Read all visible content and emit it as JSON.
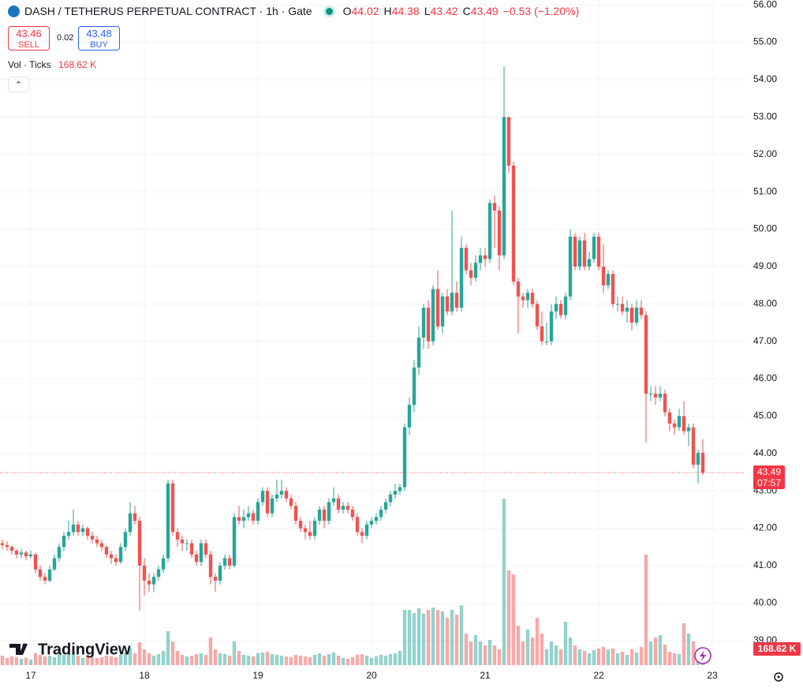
{
  "chart_data": {
    "type": "candlestick",
    "title": "DASH / TETHERUS PERPETUAL CONTRACT · 1h · Gate",
    "ohlc_labels": [
      "O",
      "H",
      "L",
      "C"
    ],
    "change": "−0.53 (−1.20%)",
    "sell": {
      "price": 43.46,
      "label": "SELL"
    },
    "spread": 0.02,
    "buy": {
      "price": 43.48,
      "label": "BUY"
    },
    "volume_title": "Vol · Ticks",
    "volume_label": "168.62 K",
    "countdown": "07:57",
    "brand": "TradingView",
    "up_color": "#26a69a",
    "down_color": "#ef5350",
    "grid": true,
    "ylim": [
      38.34,
      56.13
    ],
    "yticks": [
      {
        "value": 39,
        "label": "39.00"
      },
      {
        "value": 40,
        "label": "40.00"
      },
      {
        "value": 41,
        "label": "41.00"
      },
      {
        "value": 42,
        "label": "42.00"
      },
      {
        "value": 43,
        "label": "43.00"
      },
      {
        "value": 44,
        "label": "44.00"
      },
      {
        "value": 45,
        "label": "45.00"
      },
      {
        "value": 46,
        "label": "46.00"
      },
      {
        "value": 47,
        "label": "47.00"
      },
      {
        "value": 48,
        "label": "48.00"
      },
      {
        "value": 49,
        "label": "49.00"
      },
      {
        "value": 50,
        "label": "50.00"
      },
      {
        "value": 51,
        "label": "51.00"
      },
      {
        "value": 52,
        "label": "52.00"
      },
      {
        "value": 53,
        "label": "53.00"
      },
      {
        "value": 54,
        "label": "54.00"
      },
      {
        "value": 55,
        "label": "55.00"
      },
      {
        "value": 56,
        "label": "56.00"
      }
    ],
    "xticks": [
      "17",
      "18",
      "19",
      "20",
      "21",
      "22",
      "23"
    ],
    "candles": [
      [
        41.6,
        41.7,
        41.45,
        41.55,
        120
      ],
      [
        41.55,
        41.65,
        41.4,
        41.5,
        90
      ],
      [
        41.5,
        41.55,
        41.3,
        41.4,
        110
      ],
      [
        41.4,
        41.45,
        41.2,
        41.3,
        100
      ],
      [
        41.3,
        41.45,
        41.2,
        41.35,
        80
      ],
      [
        41.35,
        41.4,
        41.15,
        41.25,
        95
      ],
      [
        41.25,
        41.4,
        41.2,
        41.3,
        70
      ],
      [
        41.3,
        41.35,
        40.8,
        40.9,
        150
      ],
      [
        40.9,
        41.0,
        40.6,
        40.7,
        130
      ],
      [
        40.7,
        40.8,
        40.5,
        40.6,
        110
      ],
      [
        40.6,
        41.0,
        40.55,
        40.9,
        120
      ],
      [
        40.9,
        41.3,
        40.85,
        41.2,
        100
      ],
      [
        41.2,
        41.6,
        41.1,
        41.5,
        140
      ],
      [
        41.5,
        41.9,
        41.4,
        41.8,
        130
      ],
      [
        41.8,
        42.2,
        41.7,
        41.9,
        150
      ],
      [
        41.9,
        42.5,
        41.8,
        42.1,
        160
      ],
      [
        42.1,
        42.2,
        41.8,
        41.9,
        120
      ],
      [
        41.9,
        42.1,
        41.8,
        42.0,
        90
      ],
      [
        42.0,
        42.05,
        41.7,
        41.8,
        110
      ],
      [
        41.8,
        41.9,
        41.6,
        41.7,
        100
      ],
      [
        41.7,
        41.8,
        41.5,
        41.6,
        90
      ],
      [
        41.6,
        41.7,
        41.4,
        41.5,
        100
      ],
      [
        41.5,
        41.55,
        41.2,
        41.3,
        120
      ],
      [
        41.3,
        41.4,
        41.05,
        41.2,
        110
      ],
      [
        41.2,
        41.3,
        41.0,
        41.1,
        100
      ],
      [
        41.1,
        41.6,
        41.05,
        41.5,
        130
      ],
      [
        41.5,
        42.0,
        41.4,
        41.9,
        160
      ],
      [
        41.9,
        42.7,
        41.8,
        42.4,
        220
      ],
      [
        42.4,
        42.6,
        42.1,
        42.2,
        150
      ],
      [
        42.2,
        42.3,
        39.8,
        41.0,
        290
      ],
      [
        41.0,
        41.2,
        40.2,
        40.6,
        200
      ],
      [
        40.6,
        40.8,
        40.3,
        40.5,
        150
      ],
      [
        40.5,
        40.8,
        40.3,
        40.7,
        120
      ],
      [
        40.7,
        41.0,
        40.6,
        40.9,
        140
      ],
      [
        40.9,
        41.3,
        40.8,
        41.2,
        180
      ],
      [
        41.2,
        43.3,
        41.1,
        43.2,
        430
      ],
      [
        43.2,
        43.3,
        41.8,
        41.9,
        300
      ],
      [
        41.9,
        42.0,
        41.5,
        41.7,
        180
      ],
      [
        41.7,
        41.8,
        41.4,
        41.6,
        130
      ],
      [
        41.6,
        41.7,
        41.4,
        41.6,
        110
      ],
      [
        41.6,
        41.7,
        41.2,
        41.3,
        120
      ],
      [
        41.3,
        41.4,
        41.0,
        41.1,
        140
      ],
      [
        41.1,
        41.7,
        41.0,
        41.6,
        150
      ],
      [
        41.6,
        41.7,
        41.2,
        41.3,
        130
      ],
      [
        41.3,
        41.4,
        40.5,
        40.7,
        350
      ],
      [
        40.7,
        40.8,
        40.3,
        40.6,
        200
      ],
      [
        40.6,
        41.1,
        40.5,
        41.0,
        150
      ],
      [
        41.0,
        41.3,
        40.9,
        41.2,
        140
      ],
      [
        41.2,
        41.3,
        40.9,
        41.0,
        120
      ],
      [
        41.0,
        42.4,
        40.95,
        42.3,
        300
      ],
      [
        42.3,
        42.6,
        42.1,
        42.2,
        180
      ],
      [
        42.2,
        42.5,
        42.0,
        42.3,
        130
      ],
      [
        42.3,
        42.6,
        42.2,
        42.4,
        120
      ],
      [
        42.4,
        42.5,
        42.1,
        42.2,
        110
      ],
      [
        42.2,
        42.8,
        42.1,
        42.7,
        150
      ],
      [
        42.7,
        43.1,
        42.6,
        43.0,
        160
      ],
      [
        43.0,
        43.1,
        42.3,
        42.4,
        170
      ],
      [
        42.4,
        42.9,
        42.3,
        42.8,
        140
      ],
      [
        42.8,
        43.3,
        42.7,
        42.9,
        130
      ],
      [
        42.9,
        43.3,
        42.8,
        43.0,
        120
      ],
      [
        43.0,
        43.1,
        42.7,
        42.8,
        110
      ],
      [
        42.8,
        42.9,
        42.5,
        42.6,
        100
      ],
      [
        42.6,
        42.7,
        42.1,
        42.2,
        130
      ],
      [
        42.2,
        42.3,
        41.9,
        42.0,
        120
      ],
      [
        42.0,
        42.1,
        41.7,
        41.9,
        110
      ],
      [
        41.9,
        42.2,
        41.7,
        41.8,
        100
      ],
      [
        41.8,
        42.3,
        41.7,
        42.2,
        130
      ],
      [
        42.2,
        42.6,
        42.1,
        42.5,
        150
      ],
      [
        42.5,
        42.6,
        42.0,
        42.2,
        120
      ],
      [
        42.2,
        42.8,
        42.1,
        42.7,
        140
      ],
      [
        42.7,
        43.1,
        42.6,
        42.8,
        160
      ],
      [
        42.8,
        42.9,
        42.4,
        42.5,
        120
      ],
      [
        42.5,
        42.7,
        42.4,
        42.6,
        90
      ],
      [
        42.6,
        42.7,
        42.4,
        42.5,
        80
      ],
      [
        42.5,
        42.6,
        42.2,
        42.3,
        100
      ],
      [
        42.3,
        42.4,
        41.8,
        41.9,
        130
      ],
      [
        41.9,
        42.0,
        41.6,
        41.8,
        140
      ],
      [
        41.8,
        42.2,
        41.7,
        42.1,
        120
      ],
      [
        42.1,
        42.3,
        42.0,
        42.2,
        90
      ],
      [
        42.2,
        42.4,
        42.1,
        42.3,
        110
      ],
      [
        42.3,
        42.6,
        42.2,
        42.5,
        130
      ],
      [
        42.5,
        42.8,
        42.4,
        42.7,
        120
      ],
      [
        42.7,
        43.0,
        42.6,
        42.9,
        140
      ],
      [
        42.9,
        43.2,
        42.8,
        43.0,
        150
      ],
      [
        43.0,
        43.2,
        42.9,
        43.1,
        180
      ],
      [
        43.1,
        44.8,
        43.0,
        44.7,
        700
      ],
      [
        44.7,
        45.5,
        44.5,
        45.3,
        700
      ],
      [
        45.3,
        46.5,
        45.1,
        46.3,
        660
      ],
      [
        46.3,
        47.4,
        46.1,
        47.1,
        720
      ],
      [
        47.1,
        48.0,
        46.8,
        47.9,
        650
      ],
      [
        47.9,
        48.1,
        46.8,
        47.0,
        700
      ],
      [
        47.0,
        48.5,
        46.9,
        48.4,
        730
      ],
      [
        48.4,
        48.9,
        47.3,
        47.4,
        700
      ],
      [
        47.4,
        48.3,
        47.2,
        48.2,
        680
      ],
      [
        48.2,
        48.4,
        47.7,
        47.8,
        600
      ],
      [
        47.8,
        50.5,
        47.7,
        48.3,
        700
      ],
      [
        48.3,
        48.6,
        47.8,
        47.9,
        640
      ],
      [
        47.9,
        49.8,
        47.8,
        49.5,
        760
      ],
      [
        49.5,
        49.6,
        48.8,
        48.9,
        400
      ],
      [
        48.9,
        49.1,
        48.5,
        48.7,
        300
      ],
      [
        48.7,
        49.3,
        48.6,
        49.1,
        380
      ],
      [
        49.1,
        49.5,
        48.9,
        49.3,
        300
      ],
      [
        49.3,
        49.5,
        49.0,
        49.2,
        250
      ],
      [
        49.2,
        50.8,
        49.1,
        50.7,
        320
      ],
      [
        50.7,
        50.9,
        49.5,
        50.5,
        250
      ],
      [
        50.5,
        50.6,
        48.9,
        49.3,
        200
      ],
      [
        49.3,
        54.35,
        49.2,
        53.0,
        2110
      ],
      [
        53.0,
        53.0,
        51.5,
        51.7,
        1200
      ],
      [
        51.7,
        51.8,
        48.5,
        48.6,
        1150
      ],
      [
        48.6,
        48.7,
        47.2,
        48.2,
        500
      ],
      [
        48.2,
        48.3,
        47.9,
        48.1,
        300
      ],
      [
        48.1,
        48.4,
        47.9,
        48.3,
        450
      ],
      [
        48.3,
        48.4,
        47.9,
        48.0,
        350
      ],
      [
        48.0,
        48.1,
        47.3,
        47.4,
        600
      ],
      [
        47.4,
        47.8,
        46.9,
        47.0,
        400
      ],
      [
        47.0,
        47.5,
        46.9,
        47.0,
        200
      ],
      [
        47.0,
        48.0,
        46.9,
        47.8,
        300
      ],
      [
        47.8,
        48.2,
        47.6,
        48.0,
        250
      ],
      [
        48.0,
        48.1,
        47.6,
        47.7,
        200
      ],
      [
        47.7,
        48.3,
        47.6,
        48.2,
        550
      ],
      [
        48.2,
        50.0,
        48.1,
        49.8,
        350
      ],
      [
        49.8,
        49.9,
        48.9,
        49.0,
        250
      ],
      [
        49.0,
        49.8,
        48.9,
        49.7,
        200
      ],
      [
        49.7,
        49.9,
        48.9,
        49.0,
        180
      ],
      [
        49.0,
        49.4,
        48.9,
        49.2,
        150
      ],
      [
        49.2,
        49.9,
        49.1,
        49.8,
        190
      ],
      [
        49.8,
        49.9,
        48.9,
        49.0,
        210
      ],
      [
        49.0,
        49.6,
        48.3,
        48.5,
        230
      ],
      [
        48.5,
        48.9,
        48.4,
        48.8,
        200
      ],
      [
        48.8,
        48.9,
        47.9,
        48.0,
        210
      ],
      [
        48.0,
        48.2,
        47.8,
        48.0,
        150
      ],
      [
        48.0,
        48.2,
        47.7,
        47.8,
        170
      ],
      [
        47.8,
        48.1,
        47.5,
        47.9,
        130
      ],
      [
        47.9,
        48.0,
        47.3,
        47.5,
        200
      ],
      [
        47.5,
        48.1,
        47.4,
        47.9,
        160
      ],
      [
        47.9,
        48.1,
        47.6,
        47.7,
        230
      ],
      [
        47.7,
        47.8,
        44.3,
        45.6,
        1400
      ],
      [
        45.6,
        45.8,
        45.4,
        45.6,
        300
      ],
      [
        45.6,
        45.8,
        45.3,
        45.5,
        350
      ],
      [
        45.5,
        45.8,
        45.4,
        45.6,
        380
      ],
      [
        45.6,
        45.7,
        45.0,
        45.1,
        260
      ],
      [
        45.1,
        45.2,
        44.6,
        44.8,
        170
      ],
      [
        44.8,
        44.9,
        44.5,
        44.7,
        150
      ],
      [
        44.7,
        45.2,
        44.6,
        45.0,
        140
      ],
      [
        45.0,
        45.4,
        44.5,
        44.6,
        530
      ],
      [
        44.6,
        44.8,
        44.2,
        44.7,
        400
      ],
      [
        44.7,
        44.8,
        43.6,
        43.7,
        300
      ],
      [
        43.7,
        44.1,
        43.2,
        44.02,
        200
      ],
      [
        44.02,
        44.38,
        43.42,
        43.49,
        168.62
      ]
    ]
  }
}
